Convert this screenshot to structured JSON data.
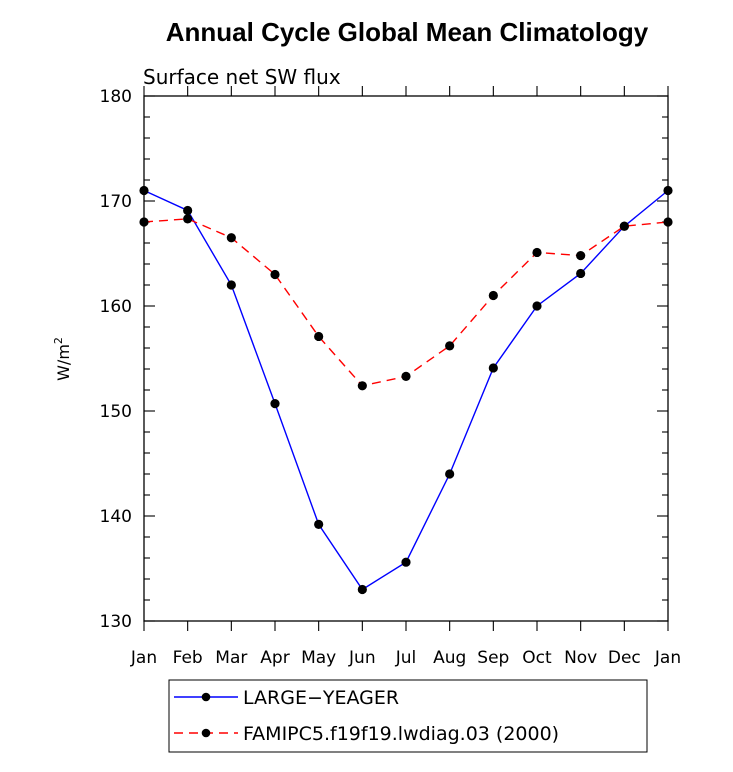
{
  "chart_data": {
    "type": "line",
    "title": "Annual Cycle Global Mean Climatology",
    "subtitle": "Surface net SW flux",
    "ylabel_base": "W/m",
    "ylabel_sup": "2",
    "xlabel": "",
    "categories": [
      "Jan",
      "Feb",
      "Mar",
      "Apr",
      "May",
      "Jun",
      "Jul",
      "Aug",
      "Sep",
      "Oct",
      "Nov",
      "Dec",
      "Jan"
    ],
    "ylim": [
      130,
      180
    ],
    "yticks": [
      130,
      140,
      150,
      160,
      170,
      180
    ],
    "grid": false,
    "legend_position": "bottom",
    "series": [
      {
        "name": "LARGE−YEAGER",
        "color": "#0000ff",
        "dash": "solid",
        "marker": "filled-circle",
        "values": [
          171.0,
          169.1,
          162.0,
          150.7,
          139.2,
          133.0,
          135.6,
          144.0,
          154.1,
          160.0,
          163.1,
          167.6,
          171.0
        ]
      },
      {
        "name": "FAMIPC5.f19f19.lwdiag.03 (2000)",
        "color": "#ff0000",
        "dash": "dashed",
        "marker": "filled-circle",
        "values": [
          168.0,
          168.3,
          166.5,
          163.0,
          157.1,
          152.4,
          153.3,
          156.2,
          161.0,
          165.1,
          164.8,
          167.6,
          168.0
        ]
      }
    ]
  }
}
